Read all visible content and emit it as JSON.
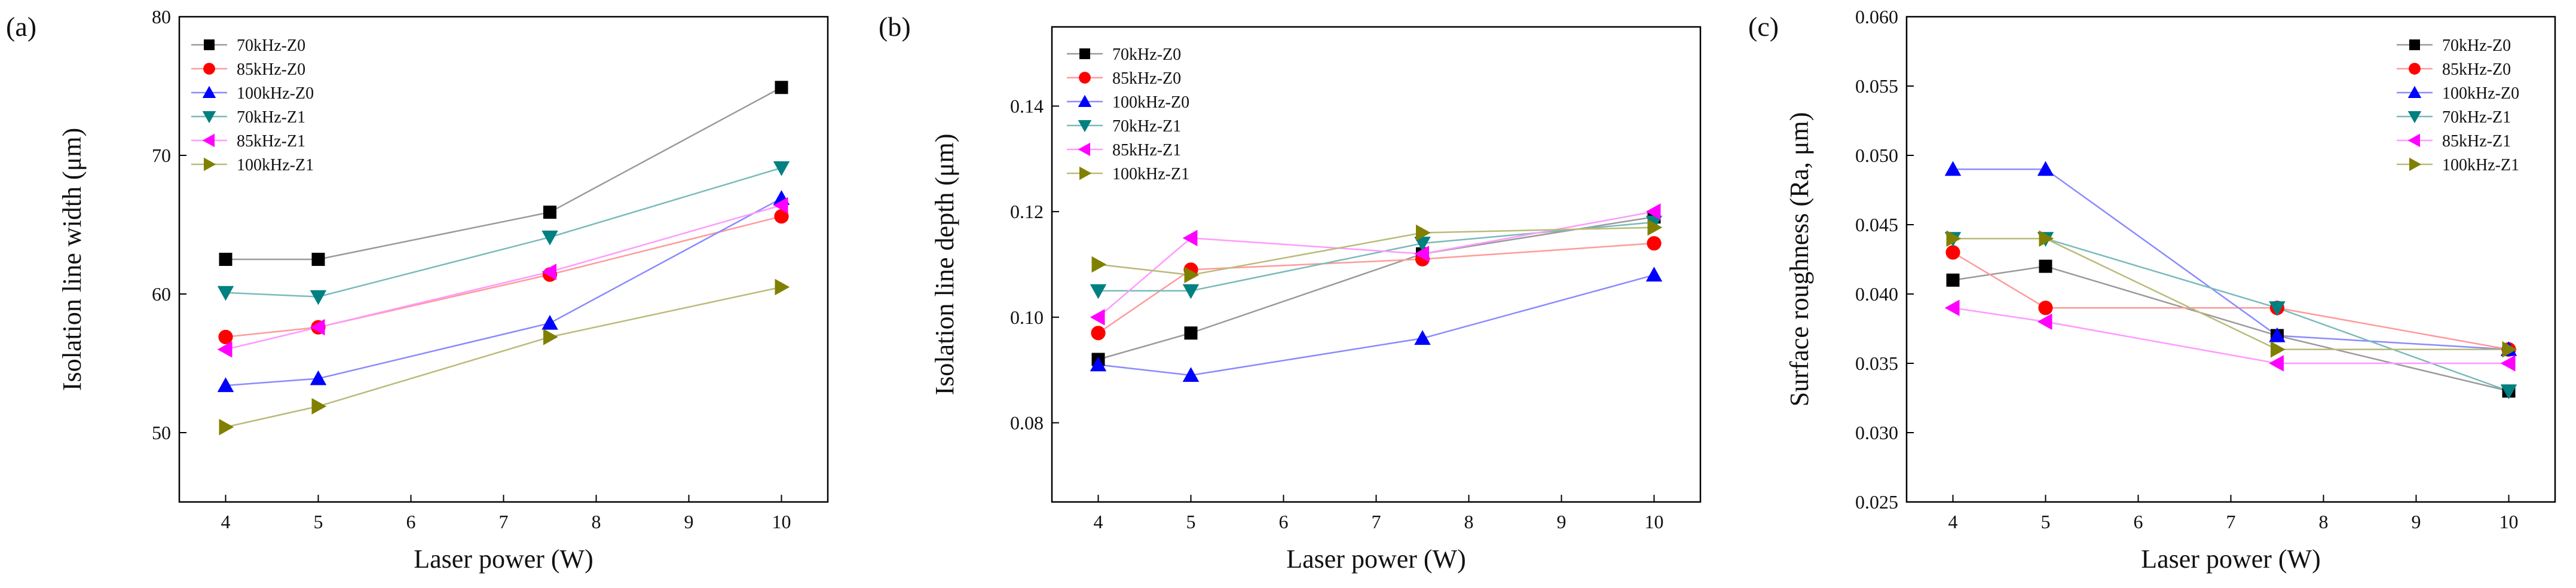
{
  "chart_data": [
    {
      "type": "line",
      "panel_label": "(a)",
      "xlabel": "Laser power (W)",
      "ylabel": "Isolation line width (μm)",
      "xlim": [
        3.5,
        10.5
      ],
      "ylim": [
        45,
        80
      ],
      "xticks": [
        4,
        5,
        6,
        7,
        8,
        9,
        10
      ],
      "yticks": [
        50,
        60,
        70,
        80
      ],
      "y_decimals": 0,
      "x": [
        4,
        5,
        7.5,
        10
      ],
      "series": [
        {
          "name": "70kHz-Z0",
          "color": "#000000",
          "line": "#9a9a9a",
          "marker": "square",
          "values": [
            62.5,
            62.5,
            65.9,
            74.9
          ]
        },
        {
          "name": "85kHz-Z0",
          "color": "#ff0000",
          "line": "#ff9a9a",
          "marker": "circle",
          "values": [
            56.9,
            57.6,
            61.4,
            65.6
          ]
        },
        {
          "name": "100kHz-Z0",
          "color": "#0000ff",
          "line": "#8a8aff",
          "marker": "triangle-up",
          "values": [
            53.4,
            53.9,
            57.9,
            66.9
          ]
        },
        {
          "name": "70kHz-Z1",
          "color": "#008080",
          "line": "#7ababa",
          "marker": "triangle-down",
          "values": [
            60.1,
            59.8,
            64.1,
            69.1
          ]
        },
        {
          "name": "85kHz-Z1",
          "color": "#ff00ff",
          "line": "#ff9aff",
          "marker": "triangle-left",
          "values": [
            56.0,
            57.6,
            61.6,
            66.4
          ]
        },
        {
          "name": "100kHz-Z1",
          "color": "#808000",
          "line": "#baba7a",
          "marker": "triangle-right",
          "values": [
            50.4,
            51.9,
            56.9,
            60.5
          ]
        }
      ]
    },
    {
      "type": "line",
      "panel_label": "(b)",
      "xlabel": "Laser power (W)",
      "ylabel": "Isolation line depth (μm)",
      "xlim": [
        3.5,
        10.5
      ],
      "ylim": [
        0.065,
        0.155
      ],
      "xticks": [
        4,
        5,
        6,
        7,
        8,
        9,
        10
      ],
      "yticks": [
        0.08,
        0.1,
        0.12,
        0.14
      ],
      "y_decimals": 2,
      "x": [
        4,
        5,
        7.5,
        10
      ],
      "series": [
        {
          "name": "70kHz-Z0",
          "color": "#000000",
          "line": "#9a9a9a",
          "marker": "square",
          "values": [
            0.092,
            0.097,
            0.112,
            0.119
          ]
        },
        {
          "name": "85kHz-Z0",
          "color": "#ff0000",
          "line": "#ff9a9a",
          "marker": "circle",
          "values": [
            0.097,
            0.109,
            0.111,
            0.114
          ]
        },
        {
          "name": "100kHz-Z0",
          "color": "#0000ff",
          "line": "#8a8aff",
          "marker": "triangle-up",
          "values": [
            0.091,
            0.089,
            0.096,
            0.108
          ]
        },
        {
          "name": "70kHz-Z1",
          "color": "#008080",
          "line": "#7ababa",
          "marker": "triangle-down",
          "values": [
            0.105,
            0.105,
            0.114,
            0.118
          ]
        },
        {
          "name": "85kHz-Z1",
          "color": "#ff00ff",
          "line": "#ff9aff",
          "marker": "triangle-left",
          "values": [
            0.1,
            0.115,
            0.112,
            0.12
          ]
        },
        {
          "name": "100kHz-Z1",
          "color": "#808000",
          "line": "#baba7a",
          "marker": "triangle-right",
          "values": [
            0.11,
            0.108,
            0.116,
            0.117
          ]
        }
      ]
    },
    {
      "type": "line",
      "panel_label": "(c)",
      "xlabel": "Laser power (W)",
      "ylabel": "Surface roughness (Ra, μm)",
      "xlim": [
        3.5,
        10.5
      ],
      "ylim": [
        0.025,
        0.06
      ],
      "xticks": [
        4,
        5,
        6,
        7,
        8,
        9,
        10
      ],
      "yticks": [
        0.025,
        0.03,
        0.035,
        0.04,
        0.045,
        0.05,
        0.055,
        0.06
      ],
      "y_decimals": 3,
      "x": [
        4,
        5,
        7.5,
        10
      ],
      "series": [
        {
          "name": "70kHz-Z0",
          "color": "#000000",
          "line": "#9a9a9a",
          "marker": "square",
          "values": [
            0.041,
            0.042,
            0.037,
            0.033
          ]
        },
        {
          "name": "85kHz-Z0",
          "color": "#ff0000",
          "line": "#ff9a9a",
          "marker": "circle",
          "values": [
            0.043,
            0.039,
            0.039,
            0.036
          ]
        },
        {
          "name": "100kHz-Z0",
          "color": "#0000ff",
          "line": "#8a8aff",
          "marker": "triangle-up",
          "values": [
            0.049,
            0.049,
            0.037,
            0.036
          ]
        },
        {
          "name": "70kHz-Z1",
          "color": "#008080",
          "line": "#7ababa",
          "marker": "triangle-down",
          "values": [
            0.044,
            0.044,
            0.039,
            0.033
          ]
        },
        {
          "name": "85kHz-Z1",
          "color": "#ff00ff",
          "line": "#ff9aff",
          "marker": "triangle-left",
          "values": [
            0.039,
            0.038,
            0.035,
            0.035
          ]
        },
        {
          "name": "100kHz-Z1",
          "color": "#808000",
          "line": "#baba7a",
          "marker": "triangle-right",
          "values": [
            0.044,
            0.044,
            0.036,
            0.036
          ]
        }
      ]
    }
  ]
}
